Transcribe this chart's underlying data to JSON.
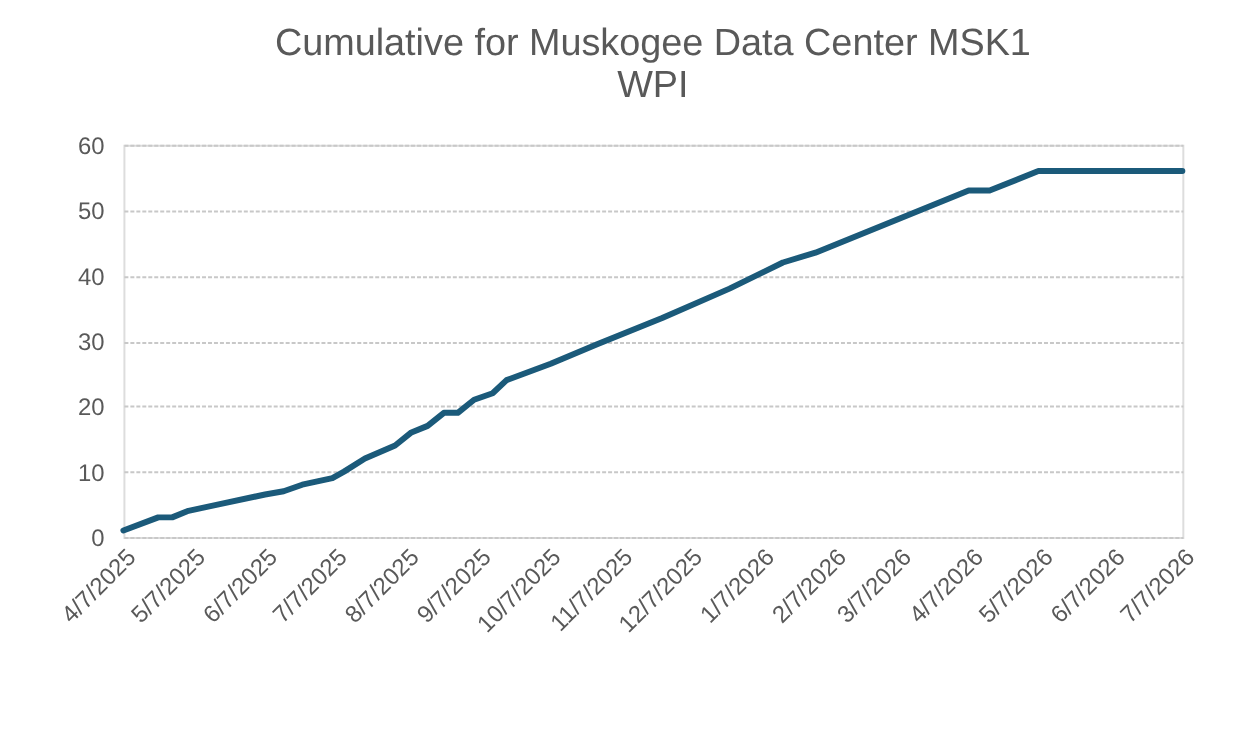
{
  "chart_data": {
    "type": "line",
    "title": [
      "Cumulative for Muskogee Data Center MSK1",
      "WPI"
    ],
    "x": [
      "2025-04-07",
      "2025-04-22",
      "2025-04-28",
      "2025-05-05",
      "2025-05-18",
      "2025-06-07",
      "2025-06-15",
      "2025-06-23",
      "2025-07-06",
      "2025-07-11",
      "2025-07-20",
      "2025-08-02",
      "2025-08-09",
      "2025-08-16",
      "2025-08-23",
      "2025-08-29",
      "2025-09-05",
      "2025-09-13",
      "2025-09-19",
      "2025-10-08",
      "2025-10-28",
      "2025-11-25",
      "2025-12-24",
      "2026-01-16",
      "2026-01-30",
      "2026-04-06",
      "2026-04-15",
      "2026-05-06",
      "2026-07-07"
    ],
    "series": [
      {
        "color": "#1b5a7a",
        "values": [
          1,
          3,
          3,
          4,
          5,
          6.5,
          7,
          8,
          9,
          10,
          12,
          14,
          16,
          17,
          19,
          19,
          21,
          22,
          24,
          26.5,
          29.5,
          33.5,
          38,
          42,
          43.5,
          53,
          53,
          56,
          56
        ]
      }
    ],
    "xlim": [
      "2025-04-07",
      "2026-07-07"
    ],
    "xticks": [
      {
        "value": "2025-04-07",
        "label": "4/7/2025"
      },
      {
        "value": "2025-05-07",
        "label": "5/7/2025"
      },
      {
        "value": "2025-06-07",
        "label": "6/7/2025"
      },
      {
        "value": "2025-07-07",
        "label": "7/7/2025"
      },
      {
        "value": "2025-08-07",
        "label": "8/7/2025"
      },
      {
        "value": "2025-09-07",
        "label": "9/7/2025"
      },
      {
        "value": "2025-10-07",
        "label": "10/7/2025"
      },
      {
        "value": "2025-11-07",
        "label": "11/7/2025"
      },
      {
        "value": "2025-12-07",
        "label": "12/7/2025"
      },
      {
        "value": "2026-01-07",
        "label": "1/7/2026"
      },
      {
        "value": "2026-02-07",
        "label": "2/7/2026"
      },
      {
        "value": "2026-03-07",
        "label": "3/7/2026"
      },
      {
        "value": "2026-04-07",
        "label": "4/7/2026"
      },
      {
        "value": "2026-05-07",
        "label": "5/7/2026"
      },
      {
        "value": "2026-06-07",
        "label": "6/7/2026"
      },
      {
        "value": "2026-07-07",
        "label": "7/7/2026"
      }
    ],
    "ylim": [
      0,
      60
    ],
    "yticks": [
      0,
      10,
      20,
      30,
      40,
      50,
      60
    ],
    "grid": "y",
    "marker": "none",
    "line_style": "solid"
  }
}
